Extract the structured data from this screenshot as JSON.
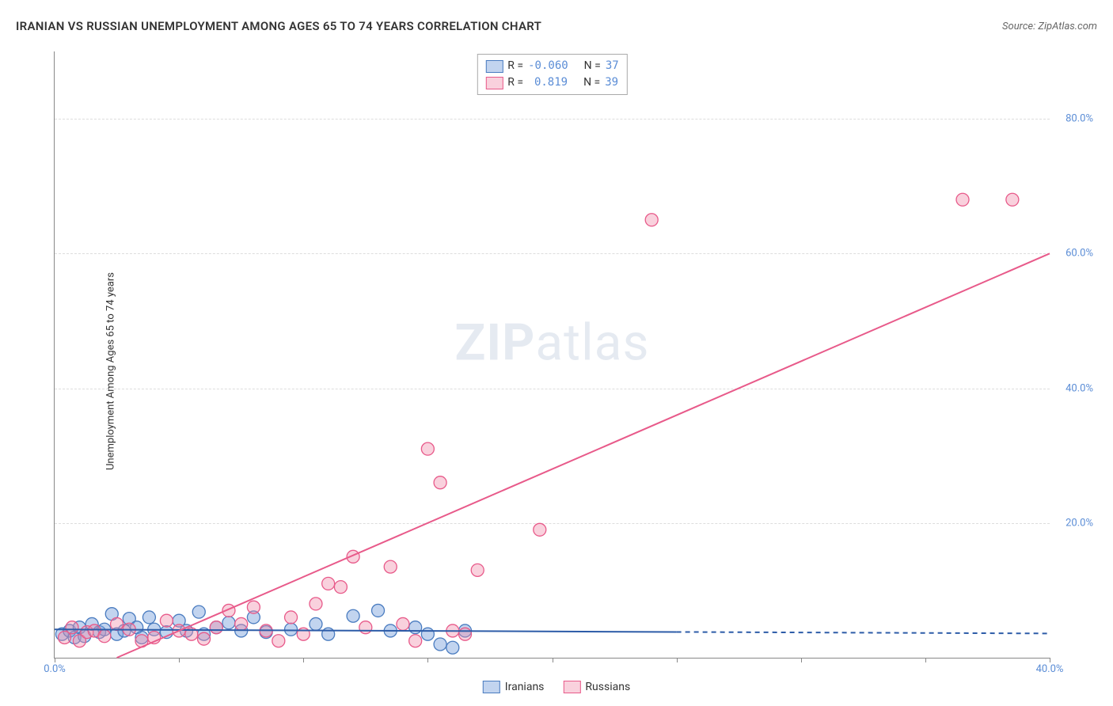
{
  "header": {
    "title": "IRANIAN VS RUSSIAN UNEMPLOYMENT AMONG AGES 65 TO 74 YEARS CORRELATION CHART",
    "source": "Source: ZipAtlas.com"
  },
  "axes": {
    "y_label": "Unemployment Among Ages 65 to 74 years",
    "x_min": 0,
    "x_max": 40,
    "y_min": 0,
    "y_max": 90,
    "x_ticks": [
      0,
      5,
      10,
      15,
      20,
      25,
      30,
      35,
      40
    ],
    "x_tick_labels": {
      "0": "0.0%",
      "40": "40.0%"
    },
    "y_ticks": [
      20,
      40,
      60,
      80
    ],
    "y_tick_labels": {
      "20": "20.0%",
      "40": "40.0%",
      "60": "60.0%",
      "80": "80.0%"
    },
    "y_label_side": "right",
    "grid_color": "#dddddd"
  },
  "series": [
    {
      "name": "Iranians",
      "legend_label": "Iranians",
      "r_value": "-0.060",
      "n_value": "37",
      "marker_fill": "rgba(120,160,220,0.45)",
      "marker_stroke": "#4a7cc0",
      "marker_radius": 8,
      "line_color": "#2d5ca8",
      "line_width": 2,
      "line_solid_to_x": 25,
      "line_y_at_x0": 4.2,
      "line_y_at_xmax": 3.6,
      "points": [
        [
          0.3,
          3.5
        ],
        [
          0.6,
          4.0
        ],
        [
          0.8,
          3.0
        ],
        [
          1.0,
          4.5
        ],
        [
          1.2,
          3.2
        ],
        [
          1.5,
          5.0
        ],
        [
          1.8,
          3.8
        ],
        [
          2.0,
          4.2
        ],
        [
          2.3,
          6.5
        ],
        [
          2.5,
          3.5
        ],
        [
          2.8,
          4.0
        ],
        [
          3.0,
          5.8
        ],
        [
          3.3,
          4.5
        ],
        [
          3.5,
          3.0
        ],
        [
          3.8,
          6.0
        ],
        [
          4.0,
          4.2
        ],
        [
          4.5,
          3.8
        ],
        [
          5.0,
          5.5
        ],
        [
          5.3,
          4.0
        ],
        [
          5.8,
          6.8
        ],
        [
          6.0,
          3.5
        ],
        [
          6.5,
          4.5
        ],
        [
          7.0,
          5.2
        ],
        [
          7.5,
          4.0
        ],
        [
          8.0,
          6.0
        ],
        [
          8.5,
          3.8
        ],
        [
          9.5,
          4.2
        ],
        [
          10.5,
          5.0
        ],
        [
          11.0,
          3.5
        ],
        [
          12.0,
          6.2
        ],
        [
          13.0,
          7.0
        ],
        [
          13.5,
          4.0
        ],
        [
          14.5,
          4.5
        ],
        [
          15.0,
          3.5
        ],
        [
          15.5,
          2.0
        ],
        [
          16.0,
          1.5
        ],
        [
          16.5,
          4.0
        ]
      ]
    },
    {
      "name": "Russians",
      "legend_label": "Russians",
      "r_value": "0.819",
      "n_value": "39",
      "marker_fill": "rgba(240,140,170,0.4)",
      "marker_stroke": "#e85a8a",
      "marker_radius": 8,
      "line_color": "#e85a8a",
      "line_width": 2,
      "line_solid_to_x": 40,
      "line_y_at_x0": -4,
      "line_y_at_xmax": 60,
      "points": [
        [
          0.4,
          3.0
        ],
        [
          0.7,
          4.5
        ],
        [
          1.0,
          2.5
        ],
        [
          1.3,
          3.8
        ],
        [
          1.6,
          4.0
        ],
        [
          2.0,
          3.2
        ],
        [
          2.5,
          5.0
        ],
        [
          3.0,
          4.2
        ],
        [
          3.5,
          2.5
        ],
        [
          4.0,
          3.0
        ],
        [
          4.5,
          5.5
        ],
        [
          5.0,
          4.0
        ],
        [
          5.5,
          3.5
        ],
        [
          6.0,
          2.8
        ],
        [
          6.5,
          4.5
        ],
        [
          7.0,
          7.0
        ],
        [
          7.5,
          5.0
        ],
        [
          8.0,
          7.5
        ],
        [
          8.5,
          4.0
        ],
        [
          9.0,
          2.5
        ],
        [
          9.5,
          6.0
        ],
        [
          10.0,
          3.5
        ],
        [
          10.5,
          8.0
        ],
        [
          11.0,
          11.0
        ],
        [
          11.5,
          10.5
        ],
        [
          12.0,
          15.0
        ],
        [
          12.5,
          4.5
        ],
        [
          13.5,
          13.5
        ],
        [
          14.0,
          5.0
        ],
        [
          14.5,
          2.5
        ],
        [
          15.0,
          31.0
        ],
        [
          15.5,
          26.0
        ],
        [
          16.0,
          4.0
        ],
        [
          16.5,
          3.5
        ],
        [
          17.0,
          13.0
        ],
        [
          19.5,
          19.0
        ],
        [
          24.0,
          65.0
        ],
        [
          36.5,
          68.0
        ],
        [
          38.5,
          68.0
        ]
      ]
    }
  ],
  "legend_top": {
    "stat_template": [
      "R =",
      "N ="
    ]
  },
  "watermark": {
    "part1": "ZIP",
    "part2": "atlas"
  },
  "colors": {
    "tick_label": "#5b8dd6",
    "axis": "#888888",
    "background": "#ffffff"
  }
}
